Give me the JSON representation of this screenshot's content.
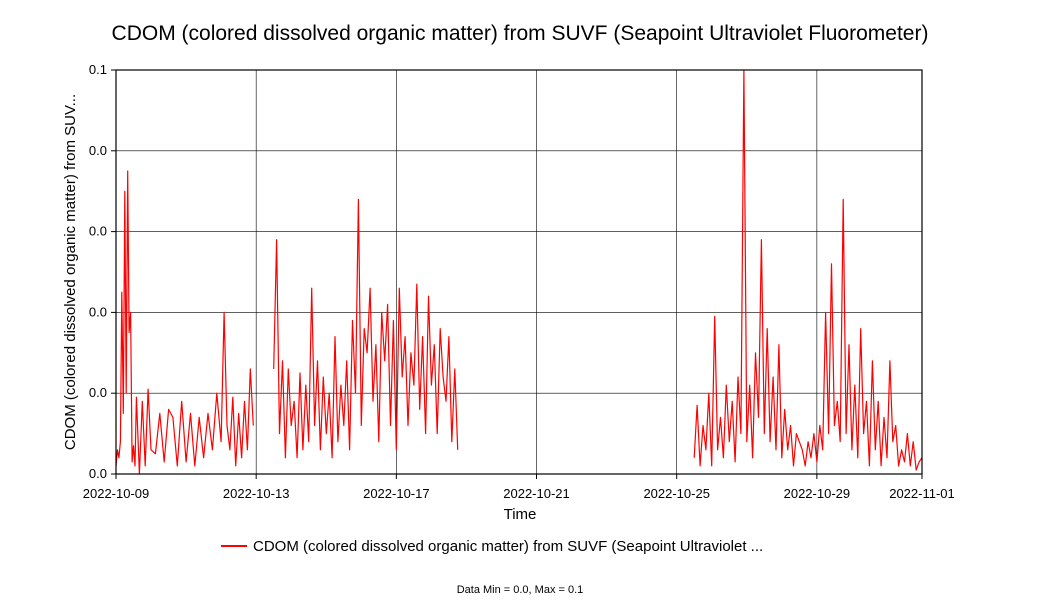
{
  "chart_data": {
    "type": "line",
    "title": "CDOM (colored dissolved organic matter) from SUVF (Seapoint Ultraviolet Fluorometer)",
    "xlabel": "Time",
    "ylabel": "CDOM (colored dissolved organic matter) from SUV...",
    "x_ticks": [
      "2022-10-09",
      "2022-10-13",
      "2022-10-17",
      "2022-10-21",
      "2022-10-25",
      "2022-10-29",
      "2022-11-01"
    ],
    "y_ticks": [
      "0.0",
      "0.0",
      "0.0",
      "0.0",
      "0.0",
      "0.1"
    ],
    "xlim": [
      "2022-10-09",
      "2022-11-01"
    ],
    "ylim": [
      0.0,
      0.1
    ],
    "grid": true,
    "legend_position": "bottom",
    "series": [
      {
        "name": "CDOM (colored dissolved organic matter) from SUVF (Seapoint Ultraviolet ...",
        "color": "#ff0000",
        "segments": [
          {
            "x": [
              "2022-10-09T00:00",
              "2022-10-09T01:00",
              "2022-10-09T02:00",
              "2022-10-09T03:00",
              "2022-10-09T04:00",
              "2022-10-09T05:00",
              "2022-10-09T06:00",
              "2022-10-09T07:00",
              "2022-10-09T08:00",
              "2022-10-09T09:00",
              "2022-10-09T10:00",
              "2022-10-09T11:00",
              "2022-10-09T12:00",
              "2022-10-09T13:00",
              "2022-10-09T14:00",
              "2022-10-09T16:00",
              "2022-10-09T18:00",
              "2022-10-09T20:00",
              "2022-10-09T22:00",
              "2022-10-10T00:00",
              "2022-10-10T03:00",
              "2022-10-10T06:00",
              "2022-10-10T09:00",
              "2022-10-10T12:00",
              "2022-10-10T15:00",
              "2022-10-10T18:00",
              "2022-10-10T21:00",
              "2022-10-11T00:00",
              "2022-10-11T03:00",
              "2022-10-11T06:00",
              "2022-10-11T09:00",
              "2022-10-11T12:00",
              "2022-10-11T15:00",
              "2022-10-11T18:00",
              "2022-10-11T21:00",
              "2022-10-12T00:00",
              "2022-10-12T02:00",
              "2022-10-12T04:00",
              "2022-10-12T06:00",
              "2022-10-12T08:00",
              "2022-10-12T10:00",
              "2022-10-12T12:00",
              "2022-10-12T14:00",
              "2022-10-12T16:00",
              "2022-10-12T18:00",
              "2022-10-12T20:00",
              "2022-10-12T22:00"
            ],
            "y": [
              0.002,
              0.006,
              0.004,
              0.008,
              0.045,
              0.015,
              0.07,
              0.02,
              0.075,
              0.035,
              0.04,
              0.003,
              0.007,
              0.002,
              0.019,
              0.0,
              0.018,
              0.002,
              0.021,
              0.006,
              0.005,
              0.015,
              0.003,
              0.016,
              0.014,
              0.002,
              0.018,
              0.003,
              0.015,
              0.002,
              0.014,
              0.004,
              0.015,
              0.006,
              0.02,
              0.008,
              0.04,
              0.012,
              0.006,
              0.019,
              0.002,
              0.015,
              0.004,
              0.018,
              0.006,
              0.026,
              0.012
            ]
          },
          {
            "x": [
              "2022-10-13T12:00",
              "2022-10-13T14:00",
              "2022-10-13T16:00",
              "2022-10-13T18:00",
              "2022-10-13T20:00",
              "2022-10-13T22:00",
              "2022-10-14T00:00",
              "2022-10-14T02:00",
              "2022-10-14T04:00",
              "2022-10-14T06:00",
              "2022-10-14T08:00",
              "2022-10-14T10:00",
              "2022-10-14T12:00",
              "2022-10-14T14:00",
              "2022-10-14T16:00",
              "2022-10-14T18:00",
              "2022-10-14T20:00",
              "2022-10-14T22:00",
              "2022-10-15T00:00",
              "2022-10-15T02:00",
              "2022-10-15T04:00",
              "2022-10-15T06:00",
              "2022-10-15T08:00",
              "2022-10-15T10:00",
              "2022-10-15T12:00",
              "2022-10-15T14:00",
              "2022-10-15T16:00",
              "2022-10-15T18:00",
              "2022-10-15T20:00",
              "2022-10-15T22:00",
              "2022-10-16T00:00",
              "2022-10-16T02:00",
              "2022-10-16T04:00",
              "2022-10-16T06:00",
              "2022-10-16T08:00",
              "2022-10-16T10:00",
              "2022-10-16T12:00",
              "2022-10-16T14:00",
              "2022-10-16T16:00",
              "2022-10-16T18:00",
              "2022-10-16T20:00",
              "2022-10-16T22:00",
              "2022-10-17T00:00",
              "2022-10-17T02:00",
              "2022-10-17T04:00",
              "2022-10-17T06:00",
              "2022-10-17T08:00",
              "2022-10-17T10:00",
              "2022-10-17T12:00",
              "2022-10-17T14:00",
              "2022-10-17T16:00",
              "2022-10-17T18:00",
              "2022-10-17T20:00",
              "2022-10-17T22:00",
              "2022-10-18T00:00",
              "2022-10-18T02:00",
              "2022-10-18T04:00",
              "2022-10-18T06:00",
              "2022-10-18T08:00",
              "2022-10-18T10:00",
              "2022-10-18T12:00",
              "2022-10-18T14:00",
              "2022-10-18T16:00",
              "2022-10-18T18:00"
            ],
            "y": [
              0.026,
              0.058,
              0.01,
              0.028,
              0.004,
              0.026,
              0.012,
              0.018,
              0.004,
              0.025,
              0.006,
              0.022,
              0.008,
              0.046,
              0.012,
              0.028,
              0.006,
              0.024,
              0.01,
              0.02,
              0.004,
              0.034,
              0.008,
              0.022,
              0.012,
              0.028,
              0.006,
              0.038,
              0.02,
              0.068,
              0.012,
              0.036,
              0.03,
              0.046,
              0.018,
              0.032,
              0.008,
              0.04,
              0.028,
              0.042,
              0.012,
              0.038,
              0.006,
              0.046,
              0.024,
              0.034,
              0.012,
              0.03,
              0.022,
              0.047,
              0.016,
              0.034,
              0.01,
              0.044,
              0.022,
              0.032,
              0.01,
              0.036,
              0.024,
              0.018,
              0.034,
              0.008,
              0.026,
              0.006
            ]
          },
          {
            "x": [
              "2022-10-25T12:00",
              "2022-10-25T14:00",
              "2022-10-25T16:00",
              "2022-10-25T18:00",
              "2022-10-25T20:00",
              "2022-10-25T22:00",
              "2022-10-26T00:00",
              "2022-10-26T02:00",
              "2022-10-26T04:00",
              "2022-10-26T06:00",
              "2022-10-26T08:00",
              "2022-10-26T10:00",
              "2022-10-26T12:00",
              "2022-10-26T14:00",
              "2022-10-26T16:00",
              "2022-10-26T18:00",
              "2022-10-26T20:00",
              "2022-10-26T22:00",
              "2022-10-27T00:00",
              "2022-10-27T02:00",
              "2022-10-27T04:00",
              "2022-10-27T06:00",
              "2022-10-27T08:00",
              "2022-10-27T10:00",
              "2022-10-27T12:00",
              "2022-10-27T14:00",
              "2022-10-27T16:00",
              "2022-10-27T18:00",
              "2022-10-27T20:00",
              "2022-10-27T22:00",
              "2022-10-28T00:00",
              "2022-10-28T02:00",
              "2022-10-28T04:00",
              "2022-10-28T06:00",
              "2022-10-28T08:00",
              "2022-10-28T10:00",
              "2022-10-28T12:00",
              "2022-10-28T14:00",
              "2022-10-28T16:00",
              "2022-10-28T18:00",
              "2022-10-28T20:00",
              "2022-10-28T22:00",
              "2022-10-29T00:00",
              "2022-10-29T02:00",
              "2022-10-29T04:00",
              "2022-10-29T06:00",
              "2022-10-29T08:00",
              "2022-10-29T10:00",
              "2022-10-29T12:00",
              "2022-10-29T14:00",
              "2022-10-29T16:00",
              "2022-10-29T18:00",
              "2022-10-29T20:00",
              "2022-10-29T22:00",
              "2022-10-30T00:00",
              "2022-10-30T02:00",
              "2022-10-30T04:00",
              "2022-10-30T06:00",
              "2022-10-30T08:00",
              "2022-10-30T10:00",
              "2022-10-30T12:00",
              "2022-10-30T14:00",
              "2022-10-30T16:00",
              "2022-10-30T18:00",
              "2022-10-30T20:00",
              "2022-10-30T22:00",
              "2022-10-31T00:00",
              "2022-10-31T02:00",
              "2022-10-31T04:00",
              "2022-10-31T06:00",
              "2022-10-31T08:00",
              "2022-10-31T10:00",
              "2022-10-31T12:00",
              "2022-10-31T14:00",
              "2022-10-31T16:00",
              "2022-10-31T18:00",
              "2022-10-31T20:00",
              "2022-10-31T22:00",
              "2022-11-01T00:00"
            ],
            "y": [
              0.004,
              0.017,
              0.002,
              0.012,
              0.006,
              0.02,
              0.002,
              0.039,
              0.006,
              0.014,
              0.004,
              0.022,
              0.008,
              0.018,
              0.003,
              0.024,
              0.01,
              0.1,
              0.008,
              0.022,
              0.004,
              0.03,
              0.014,
              0.058,
              0.01,
              0.036,
              0.008,
              0.024,
              0.006,
              0.032,
              0.004,
              0.016,
              0.006,
              0.012,
              0.002,
              0.01,
              0.008,
              0.006,
              0.002,
              0.008,
              0.004,
              0.01,
              0.003,
              0.012,
              0.006,
              0.04,
              0.01,
              0.052,
              0.012,
              0.018,
              0.008,
              0.068,
              0.01,
              0.032,
              0.006,
              0.022,
              0.004,
              0.036,
              0.01,
              0.018,
              0.002,
              0.028,
              0.006,
              0.018,
              0.002,
              0.014,
              0.004,
              0.028,
              0.008,
              0.012,
              0.002,
              0.006,
              0.003,
              0.01,
              0.002,
              0.008,
              0.001,
              0.003,
              0.004
            ]
          }
        ]
      }
    ]
  },
  "footnote": "Data Min = 0.0, Max = 0.1"
}
